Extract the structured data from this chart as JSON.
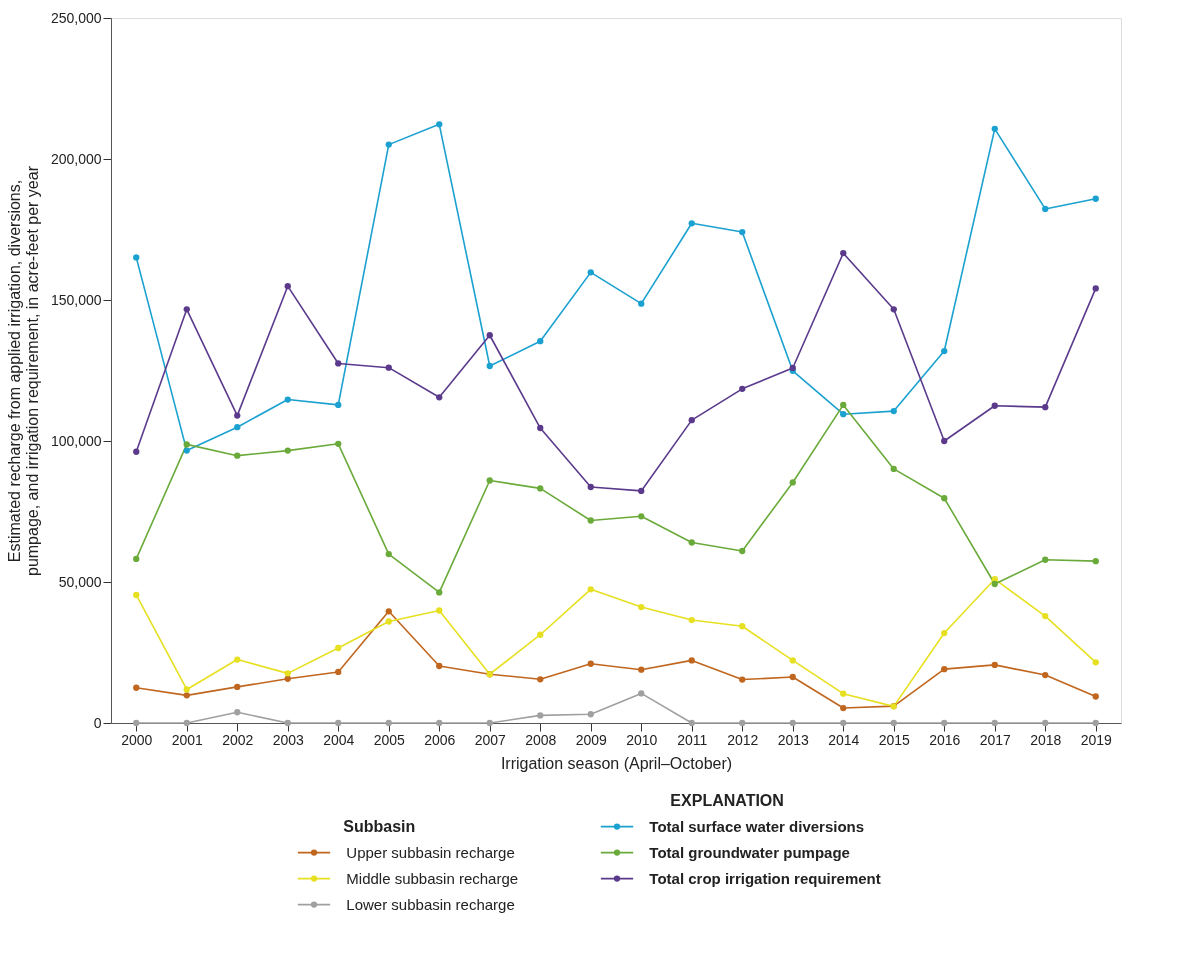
{
  "chart_data": {
    "type": "line",
    "xlabel": "Irrigation season (April–October)",
    "ylabel": "Estimated recharge from applied irrigation, diversions,\npumpage, and irrigation requirement, in acre-feet per year",
    "legend_title": "EXPLANATION",
    "annotations": [
      "Subbasin"
    ],
    "categories": [
      "2000",
      "2001",
      "2002",
      "2003",
      "2004",
      "2005",
      "2006",
      "2007",
      "2008",
      "2009",
      "2010",
      "2011",
      "2012",
      "2013",
      "2014",
      "2015",
      "2016",
      "2017",
      "2018",
      "2019"
    ],
    "ylim": [
      0,
      250000
    ],
    "yticks": [
      0,
      {
        "value": 50000,
        "label": "50,000"
      },
      {
        "value": 100000,
        "label": "100,000"
      },
      {
        "value": 150000,
        "label": "150,000"
      },
      {
        "value": 200000,
        "label": "200,000"
      },
      {
        "value": 250000,
        "label": "250,000"
      }
    ],
    "grid": false,
    "legend": "bottom",
    "marker": "circle",
    "line_style": "solid",
    "series": [
      {
        "name": "Upper subbasin recharge",
        "color": "#c0661e",
        "values": [
          12500,
          9800,
          12800,
          15700,
          18100,
          39600,
          20200,
          17300,
          15500,
          21000,
          18900,
          22200,
          15400,
          16300,
          5300,
          6000,
          19100,
          20600,
          17000,
          9400
        ]
      },
      {
        "name": "Middle subbasin recharge",
        "color": "#e6e020",
        "values": [
          45400,
          11900,
          22500,
          17600,
          26600,
          36000,
          39900,
          17300,
          31300,
          47400,
          41100,
          36500,
          34300,
          22200,
          10400,
          5900,
          31900,
          51000,
          37900,
          21500
        ]
      },
      {
        "name": "Lower subbasin recharge",
        "color": "#a0a0a0",
        "values": [
          0,
          0,
          3800,
          0,
          0,
          0,
          0,
          0,
          2700,
          3100,
          10500,
          0,
          0,
          0,
          0,
          0,
          0,
          0,
          0,
          0
        ]
      },
      {
        "name": "Total surface water diversions",
        "color": "#1ba1d0",
        "values": [
          165100,
          96600,
          104900,
          114700,
          112800,
          205100,
          212300,
          126600,
          135400,
          159800,
          148700,
          177200,
          174100,
          124900,
          109500,
          110600,
          131900,
          210700,
          182300,
          185900
        ]
      },
      {
        "name": "Total groundwater pumpage",
        "color": "#6aaa3a",
        "values": [
          58200,
          98800,
          94800,
          96600,
          99000,
          59900,
          46300,
          86000,
          83200,
          71800,
          73300,
          64000,
          61000,
          85300,
          112800,
          90100,
          79700,
          49300,
          57900,
          57400
        ]
      },
      {
        "name": "Total crop irrigation requirement",
        "color": "#5b3a8c",
        "values": [
          96200,
          146700,
          109000,
          154900,
          127500,
          126000,
          115500,
          137500,
          104600,
          83700,
          82300,
          107400,
          118500,
          125900,
          166600,
          146700,
          100000,
          112500,
          112000,
          154100
        ]
      }
    ]
  }
}
